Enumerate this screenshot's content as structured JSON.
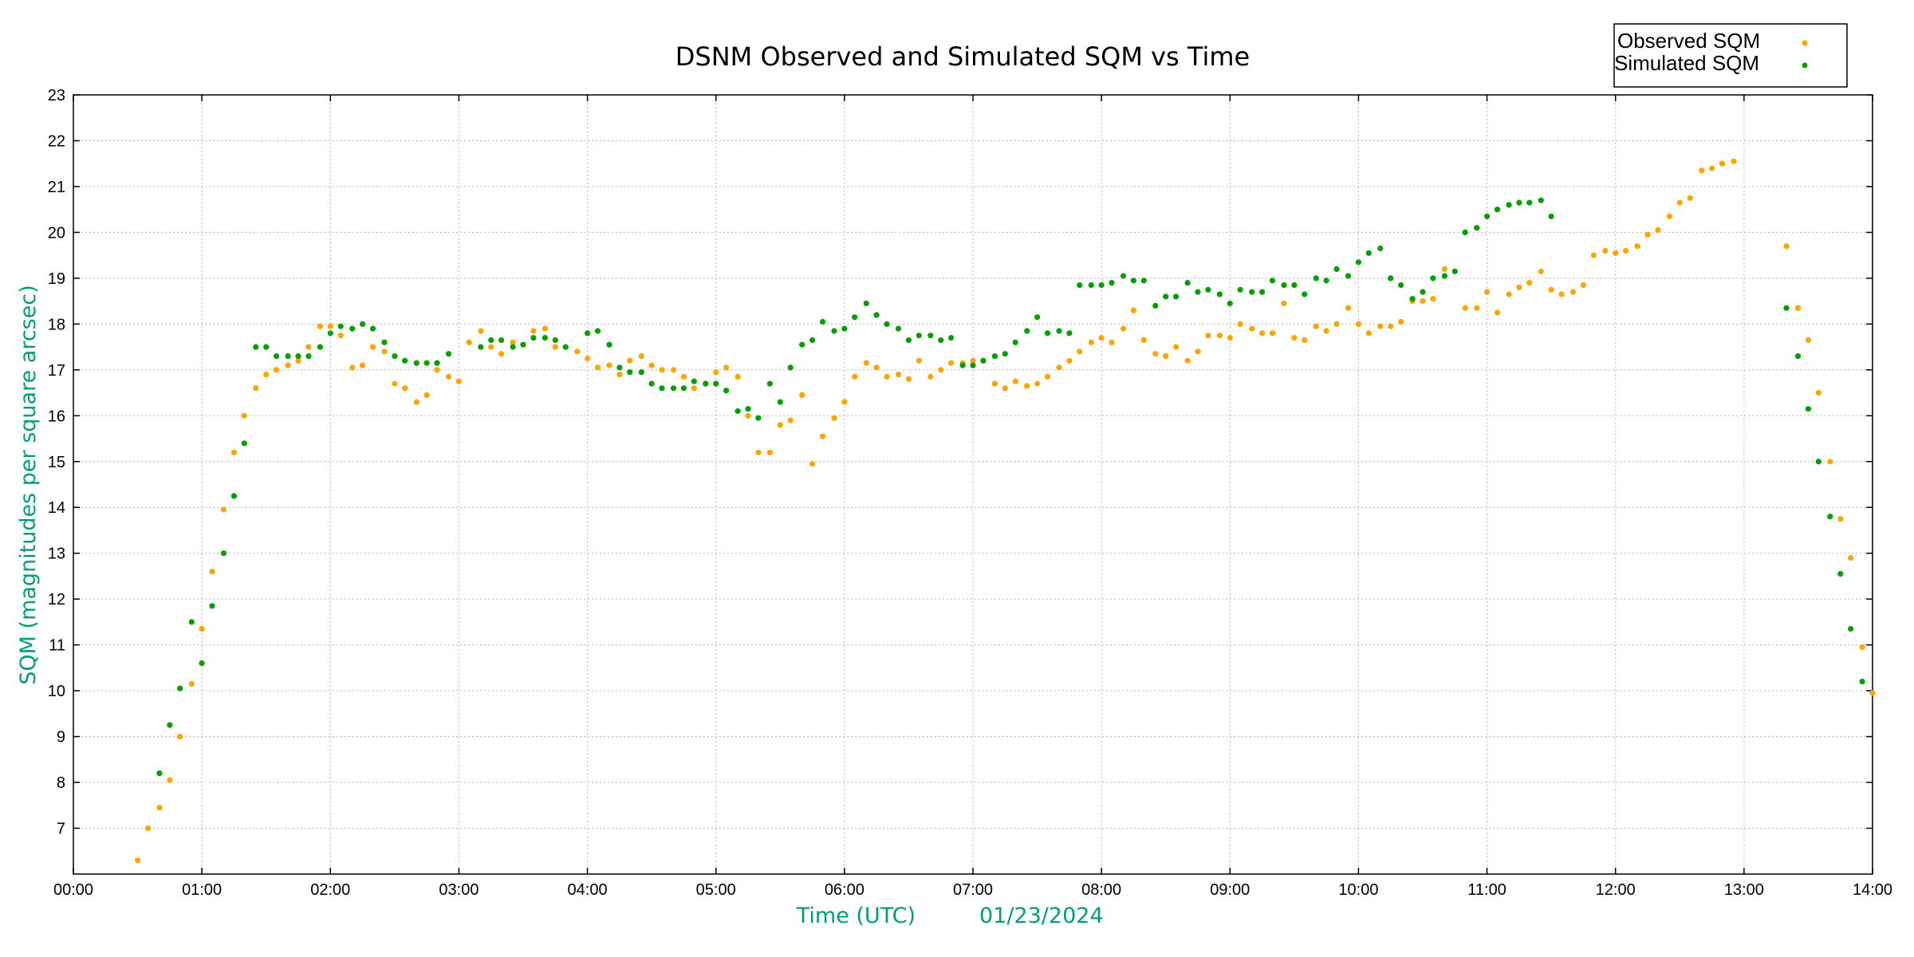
{
  "chart_data": {
    "type": "scatter",
    "title": "DSNM Observed and Simulated SQM vs Time",
    "xlabel": "Time (UTC)",
    "xlabel_date": "01/23/2024",
    "ylabel": "SQM (magnitudes per square arcsec)",
    "xlim": [
      0,
      14
    ],
    "ylim": [
      6,
      23
    ],
    "x_ticks": [
      "00:00",
      "01:00",
      "02:00",
      "03:00",
      "04:00",
      "05:00",
      "06:00",
      "07:00",
      "08:00",
      "09:00",
      "10:00",
      "11:00",
      "12:00",
      "13:00",
      "14:00"
    ],
    "y_ticks": [
      "7",
      "8",
      "9",
      "10",
      "11",
      "12",
      "13",
      "14",
      "15",
      "16",
      "17",
      "18",
      "19",
      "20",
      "21",
      "22",
      "23"
    ],
    "grid": true,
    "legend_position": "top-right",
    "colors": {
      "observed": "#ffa500",
      "simulated": "#00a000",
      "axis_label": "#009e73"
    },
    "series": [
      {
        "name": "Observed SQM",
        "color": "#ffa500",
        "points": [
          [
            0.5,
            6.3
          ],
          [
            0.58,
            7.0
          ],
          [
            0.67,
            7.45
          ],
          [
            0.75,
            8.05
          ],
          [
            0.83,
            9.0
          ],
          [
            0.92,
            10.15
          ],
          [
            1.0,
            11.35
          ],
          [
            1.08,
            12.6
          ],
          [
            1.17,
            13.95
          ],
          [
            1.25,
            15.2
          ],
          [
            1.33,
            16.0
          ],
          [
            1.42,
            16.6
          ],
          [
            1.5,
            16.9
          ],
          [
            1.58,
            17.0
          ],
          [
            1.67,
            17.1
          ],
          [
            1.75,
            17.2
          ],
          [
            1.83,
            17.5
          ],
          [
            1.92,
            17.95
          ],
          [
            2.0,
            17.95
          ],
          [
            2.08,
            17.75
          ],
          [
            2.17,
            17.05
          ],
          [
            2.25,
            17.1
          ],
          [
            2.33,
            17.5
          ],
          [
            2.42,
            17.4
          ],
          [
            2.5,
            16.7
          ],
          [
            2.58,
            16.6
          ],
          [
            2.67,
            16.3
          ],
          [
            2.75,
            16.45
          ],
          [
            2.83,
            17.0
          ],
          [
            2.92,
            16.85
          ],
          [
            3.0,
            16.75
          ],
          [
            3.08,
            17.6
          ],
          [
            3.17,
            17.85
          ],
          [
            3.25,
            17.5
          ],
          [
            3.33,
            17.35
          ],
          [
            3.42,
            17.6
          ],
          [
            3.5,
            17.55
          ],
          [
            3.58,
            17.85
          ],
          [
            3.67,
            17.9
          ],
          [
            3.75,
            17.5
          ],
          [
            3.83,
            17.5
          ],
          [
            3.92,
            17.4
          ],
          [
            4.0,
            17.25
          ],
          [
            4.08,
            17.05
          ],
          [
            4.17,
            17.1
          ],
          [
            4.25,
            16.9
          ],
          [
            4.33,
            17.2
          ],
          [
            4.42,
            17.3
          ],
          [
            4.5,
            17.1
          ],
          [
            4.58,
            17.0
          ],
          [
            4.67,
            17.0
          ],
          [
            4.75,
            16.85
          ],
          [
            4.83,
            16.6
          ],
          [
            4.92,
            16.7
          ],
          [
            5.0,
            16.95
          ],
          [
            5.08,
            17.05
          ],
          [
            5.17,
            16.85
          ],
          [
            5.25,
            16.0
          ],
          [
            5.33,
            15.2
          ],
          [
            5.42,
            15.2
          ],
          [
            5.5,
            15.8
          ],
          [
            5.58,
            15.9
          ],
          [
            5.67,
            16.45
          ],
          [
            5.75,
            14.95
          ],
          [
            5.83,
            15.55
          ],
          [
            5.92,
            15.95
          ],
          [
            6.0,
            16.3
          ],
          [
            6.08,
            16.85
          ],
          [
            6.17,
            17.15
          ],
          [
            6.25,
            17.05
          ],
          [
            6.33,
            16.85
          ],
          [
            6.42,
            16.9
          ],
          [
            6.5,
            16.8
          ],
          [
            6.58,
            17.2
          ],
          [
            6.67,
            16.85
          ],
          [
            6.75,
            17.0
          ],
          [
            6.83,
            17.15
          ],
          [
            6.92,
            17.15
          ],
          [
            7.0,
            17.2
          ],
          [
            7.08,
            17.2
          ],
          [
            7.17,
            16.7
          ],
          [
            7.25,
            16.6
          ],
          [
            7.33,
            16.75
          ],
          [
            7.42,
            16.65
          ],
          [
            7.5,
            16.7
          ],
          [
            7.58,
            16.85
          ],
          [
            7.67,
            17.05
          ],
          [
            7.75,
            17.2
          ],
          [
            7.83,
            17.4
          ],
          [
            7.92,
            17.6
          ],
          [
            8.0,
            17.7
          ],
          [
            8.08,
            17.6
          ],
          [
            8.17,
            17.9
          ],
          [
            8.25,
            18.3
          ],
          [
            8.33,
            17.65
          ],
          [
            8.42,
            17.35
          ],
          [
            8.5,
            17.3
          ],
          [
            8.58,
            17.5
          ],
          [
            8.67,
            17.2
          ],
          [
            8.75,
            17.4
          ],
          [
            8.83,
            17.75
          ],
          [
            8.92,
            17.75
          ],
          [
            9.0,
            17.7
          ],
          [
            9.08,
            18.0
          ],
          [
            9.17,
            17.9
          ],
          [
            9.25,
            17.8
          ],
          [
            9.33,
            17.8
          ],
          [
            9.42,
            18.45
          ],
          [
            9.5,
            17.7
          ],
          [
            9.58,
            17.65
          ],
          [
            9.67,
            17.95
          ],
          [
            9.75,
            17.85
          ],
          [
            9.83,
            18.0
          ],
          [
            9.92,
            18.35
          ],
          [
            10.0,
            18.0
          ],
          [
            10.08,
            17.8
          ],
          [
            10.17,
            17.95
          ],
          [
            10.25,
            17.95
          ],
          [
            10.33,
            18.05
          ],
          [
            10.42,
            18.5
          ],
          [
            10.5,
            18.5
          ],
          [
            10.58,
            18.55
          ],
          [
            10.67,
            19.2
          ],
          [
            10.75,
            19.15
          ],
          [
            10.83,
            18.35
          ],
          [
            10.92,
            18.35
          ],
          [
            11.0,
            18.7
          ],
          [
            11.08,
            18.25
          ],
          [
            11.17,
            18.65
          ],
          [
            11.25,
            18.8
          ],
          [
            11.33,
            18.9
          ],
          [
            11.42,
            19.15
          ],
          [
            11.5,
            18.75
          ],
          [
            11.58,
            18.65
          ],
          [
            11.67,
            18.7
          ],
          [
            11.75,
            18.85
          ],
          [
            11.83,
            19.5
          ],
          [
            11.92,
            19.6
          ],
          [
            12.0,
            19.55
          ],
          [
            12.08,
            19.6
          ],
          [
            12.17,
            19.7
          ],
          [
            12.25,
            19.95
          ],
          [
            12.33,
            20.05
          ],
          [
            12.42,
            20.35
          ],
          [
            12.5,
            20.65
          ],
          [
            12.58,
            20.75
          ],
          [
            12.67,
            21.35
          ],
          [
            12.75,
            21.4
          ],
          [
            12.83,
            21.5
          ],
          [
            12.92,
            21.55
          ],
          [
            13.33,
            19.7
          ],
          [
            13.42,
            18.35
          ],
          [
            13.5,
            17.65
          ],
          [
            13.58,
            16.5
          ],
          [
            13.67,
            15.0
          ],
          [
            13.75,
            13.75
          ],
          [
            13.83,
            12.9
          ],
          [
            13.92,
            10.95
          ],
          [
            14.0,
            9.95
          ]
        ]
      },
      {
        "name": "Simulated SQM",
        "color": "#00a000",
        "points": [
          [
            0.67,
            8.2
          ],
          [
            0.75,
            9.25
          ],
          [
            0.83,
            10.05
          ],
          [
            0.92,
            11.5
          ],
          [
            1.0,
            10.6
          ],
          [
            1.08,
            11.85
          ],
          [
            1.17,
            13.0
          ],
          [
            1.25,
            14.25
          ],
          [
            1.33,
            15.4
          ],
          [
            1.42,
            17.5
          ],
          [
            1.5,
            17.5
          ],
          [
            1.58,
            17.3
          ],
          [
            1.67,
            17.3
          ],
          [
            1.75,
            17.3
          ],
          [
            1.83,
            17.3
          ],
          [
            1.92,
            17.5
          ],
          [
            2.0,
            17.8
          ],
          [
            2.08,
            17.95
          ],
          [
            2.17,
            17.9
          ],
          [
            2.25,
            18.0
          ],
          [
            2.33,
            17.9
          ],
          [
            2.42,
            17.6
          ],
          [
            2.5,
            17.3
          ],
          [
            2.58,
            17.2
          ],
          [
            2.67,
            17.15
          ],
          [
            2.75,
            17.15
          ],
          [
            2.83,
            17.15
          ],
          [
            2.92,
            17.35
          ],
          [
            3.17,
            17.5
          ],
          [
            3.25,
            17.65
          ],
          [
            3.33,
            17.65
          ],
          [
            3.42,
            17.5
          ],
          [
            3.5,
            17.55
          ],
          [
            3.58,
            17.7
          ],
          [
            3.67,
            17.7
          ],
          [
            3.75,
            17.65
          ],
          [
            3.83,
            17.5
          ],
          [
            4.0,
            17.8
          ],
          [
            4.08,
            17.85
          ],
          [
            4.17,
            17.55
          ],
          [
            4.25,
            17.05
          ],
          [
            4.33,
            16.95
          ],
          [
            4.42,
            16.95
          ],
          [
            4.5,
            16.7
          ],
          [
            4.58,
            16.6
          ],
          [
            4.67,
            16.6
          ],
          [
            4.75,
            16.6
          ],
          [
            4.83,
            16.75
          ],
          [
            4.92,
            16.7
          ],
          [
            5.0,
            16.7
          ],
          [
            5.08,
            16.55
          ],
          [
            5.17,
            16.1
          ],
          [
            5.25,
            16.15
          ],
          [
            5.33,
            15.95
          ],
          [
            5.42,
            16.7
          ],
          [
            5.5,
            16.3
          ],
          [
            5.58,
            17.05
          ],
          [
            5.67,
            17.55
          ],
          [
            5.75,
            17.65
          ],
          [
            5.83,
            18.05
          ],
          [
            5.92,
            17.85
          ],
          [
            6.0,
            17.9
          ],
          [
            6.08,
            18.15
          ],
          [
            6.17,
            18.45
          ],
          [
            6.25,
            18.2
          ],
          [
            6.33,
            18.0
          ],
          [
            6.42,
            17.9
          ],
          [
            6.5,
            17.65
          ],
          [
            6.58,
            17.75
          ],
          [
            6.67,
            17.75
          ],
          [
            6.75,
            17.65
          ],
          [
            6.83,
            17.7
          ],
          [
            6.92,
            17.1
          ],
          [
            7.0,
            17.1
          ],
          [
            7.08,
            17.2
          ],
          [
            7.17,
            17.3
          ],
          [
            7.25,
            17.35
          ],
          [
            7.33,
            17.6
          ],
          [
            7.42,
            17.85
          ],
          [
            7.5,
            18.15
          ],
          [
            7.58,
            17.8
          ],
          [
            7.67,
            17.85
          ],
          [
            7.75,
            17.8
          ],
          [
            7.83,
            18.85
          ],
          [
            7.92,
            18.85
          ],
          [
            8.0,
            18.85
          ],
          [
            8.08,
            18.9
          ],
          [
            8.17,
            19.05
          ],
          [
            8.25,
            18.95
          ],
          [
            8.33,
            18.95
          ],
          [
            8.42,
            18.4
          ],
          [
            8.5,
            18.6
          ],
          [
            8.58,
            18.6
          ],
          [
            8.67,
            18.9
          ],
          [
            8.75,
            18.7
          ],
          [
            8.83,
            18.75
          ],
          [
            8.92,
            18.65
          ],
          [
            9.0,
            18.45
          ],
          [
            9.08,
            18.75
          ],
          [
            9.17,
            18.7
          ],
          [
            9.25,
            18.7
          ],
          [
            9.33,
            18.95
          ],
          [
            9.42,
            18.85
          ],
          [
            9.5,
            18.85
          ],
          [
            9.58,
            18.65
          ],
          [
            9.67,
            19.0
          ],
          [
            9.75,
            18.95
          ],
          [
            9.83,
            19.2
          ],
          [
            9.92,
            19.05
          ],
          [
            10.0,
            19.35
          ],
          [
            10.08,
            19.55
          ],
          [
            10.17,
            19.65
          ],
          [
            10.25,
            19.0
          ],
          [
            10.33,
            18.85
          ],
          [
            10.42,
            18.55
          ],
          [
            10.5,
            18.7
          ],
          [
            10.58,
            19.0
          ],
          [
            10.67,
            19.05
          ],
          [
            10.75,
            19.15
          ],
          [
            10.83,
            20.0
          ],
          [
            10.92,
            20.1
          ],
          [
            11.0,
            20.35
          ],
          [
            11.08,
            20.5
          ],
          [
            11.17,
            20.6
          ],
          [
            11.25,
            20.65
          ],
          [
            11.33,
            20.65
          ],
          [
            11.42,
            20.7
          ],
          [
            11.5,
            20.35
          ],
          [
            13.33,
            18.35
          ],
          [
            13.42,
            17.3
          ],
          [
            13.5,
            16.15
          ],
          [
            13.58,
            15.0
          ],
          [
            13.67,
            13.8
          ],
          [
            13.75,
            12.55
          ],
          [
            13.83,
            11.35
          ],
          [
            13.92,
            10.2
          ]
        ]
      }
    ]
  }
}
